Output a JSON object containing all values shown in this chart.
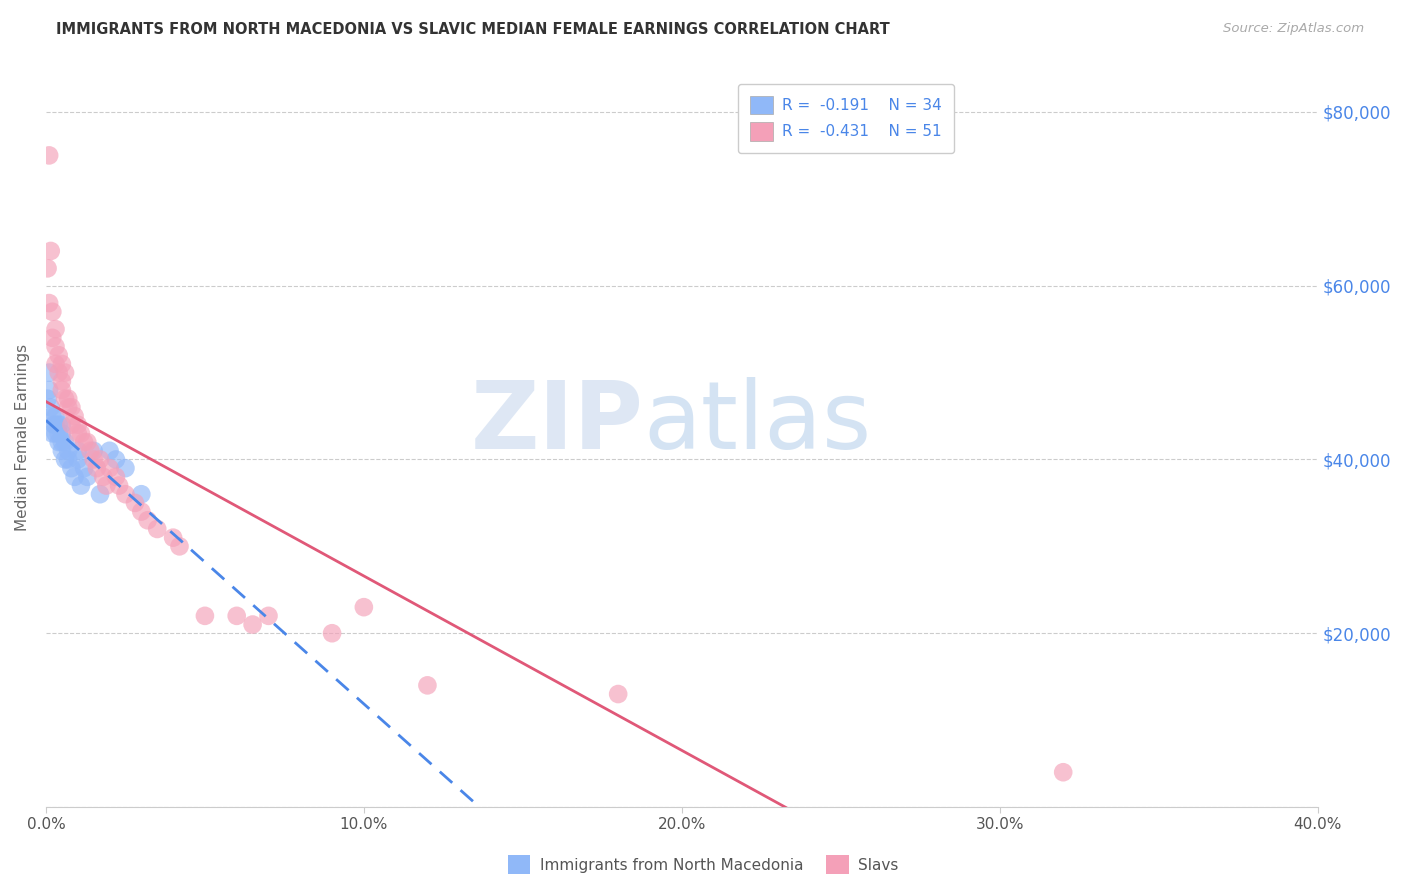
{
  "title": "IMMIGRANTS FROM NORTH MACEDONIA VS SLAVIC MEDIAN FEMALE EARNINGS CORRELATION CHART",
  "source": "Source: ZipAtlas.com",
  "ylabel": "Median Female Earnings",
  "xlim": [
    0.0,
    0.4
  ],
  "ylim": [
    0,
    85000
  ],
  "yticks": [
    0,
    20000,
    40000,
    60000,
    80000
  ],
  "ytick_labels": [
    "",
    "$20,000",
    "$40,000",
    "$60,000",
    "$80,000"
  ],
  "xticks": [
    0.0,
    0.1,
    0.2,
    0.3,
    0.4
  ],
  "xtick_labels": [
    "0.0%",
    "10.0%",
    "20.0%",
    "30.0%",
    "40.0%"
  ],
  "watermark_zip": "ZIP",
  "watermark_atlas": "atlas",
  "legend_r1": "R =  -0.191",
  "legend_n1": "N = 34",
  "legend_r2": "R =  -0.431",
  "legend_n2": "N = 51",
  "color_blue": "#90b8f8",
  "color_pink": "#f4a0b8",
  "color_blue_line": "#4a86e8",
  "color_pink_line": "#e05878",
  "color_axis_right": "#4a86e8",
  "background_color": "#ffffff",
  "grid_color": "#cccccc",
  "blue_x": [
    0.0005,
    0.001,
    0.001,
    0.0015,
    0.002,
    0.002,
    0.0025,
    0.003,
    0.003,
    0.003,
    0.004,
    0.004,
    0.004,
    0.005,
    0.005,
    0.005,
    0.005,
    0.006,
    0.006,
    0.007,
    0.007,
    0.008,
    0.009,
    0.01,
    0.01,
    0.011,
    0.012,
    0.013,
    0.015,
    0.017,
    0.02,
    0.022,
    0.025,
    0.03
  ],
  "blue_y": [
    47000,
    48000,
    50000,
    46000,
    43000,
    45000,
    44000,
    43000,
    44000,
    45000,
    42000,
    43000,
    44000,
    41000,
    42000,
    43000,
    44000,
    40000,
    42000,
    40000,
    41000,
    39000,
    38000,
    40000,
    41000,
    37000,
    39000,
    38000,
    41000,
    36000,
    41000,
    40000,
    39000,
    36000
  ],
  "pink_x": [
    0.0005,
    0.001,
    0.001,
    0.0015,
    0.002,
    0.002,
    0.003,
    0.003,
    0.003,
    0.004,
    0.004,
    0.005,
    0.005,
    0.005,
    0.006,
    0.006,
    0.007,
    0.007,
    0.008,
    0.008,
    0.009,
    0.01,
    0.01,
    0.011,
    0.012,
    0.013,
    0.014,
    0.015,
    0.016,
    0.017,
    0.018,
    0.019,
    0.02,
    0.022,
    0.023,
    0.025,
    0.028,
    0.03,
    0.032,
    0.035,
    0.04,
    0.042,
    0.05,
    0.06,
    0.065,
    0.07,
    0.09,
    0.1,
    0.12,
    0.18,
    0.32
  ],
  "pink_y": [
    62000,
    75000,
    58000,
    64000,
    54000,
    57000,
    55000,
    53000,
    51000,
    52000,
    50000,
    51000,
    49000,
    48000,
    47000,
    50000,
    47000,
    46000,
    46000,
    44000,
    45000,
    44000,
    43000,
    43000,
    42000,
    42000,
    41000,
    40000,
    39000,
    40000,
    38000,
    37000,
    39000,
    38000,
    37000,
    36000,
    35000,
    34000,
    33000,
    32000,
    31000,
    30000,
    22000,
    22000,
    21000,
    22000,
    20000,
    23000,
    14000,
    13000,
    4000
  ]
}
